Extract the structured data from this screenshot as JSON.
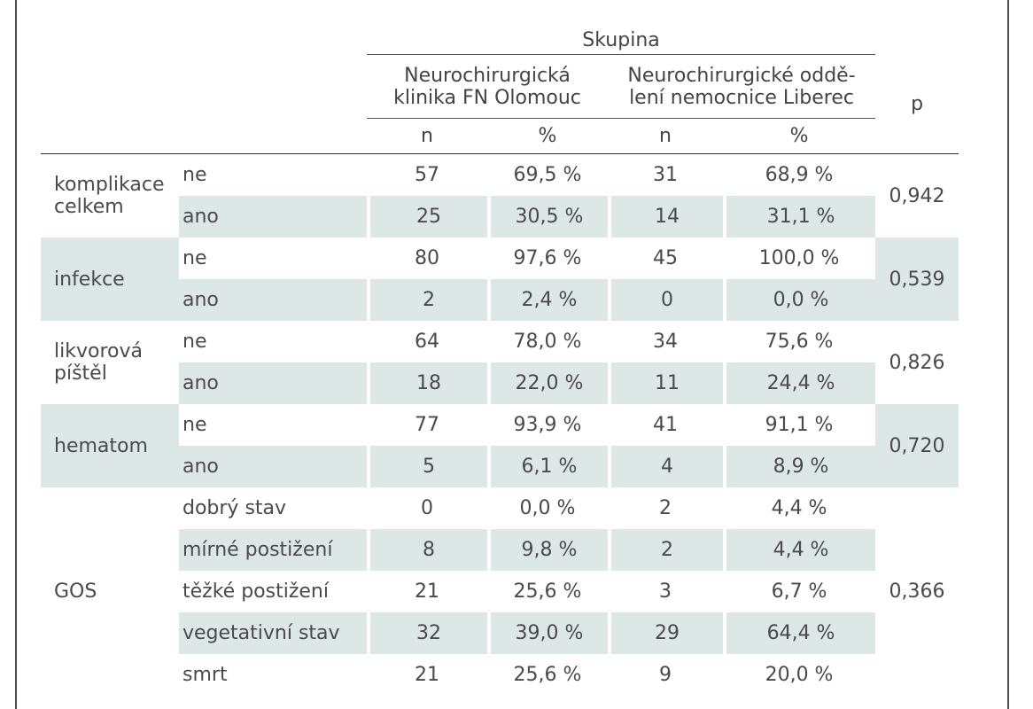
{
  "header": {
    "group_label": "Skupina",
    "col1_title": "Neurochirurgická klinika FN Olomouc",
    "col1_line1": "Neurochirurgická",
    "col1_line2": "klinika FN Olomouc",
    "col2_line1": "Neurochirurgické oddě-",
    "col2_line2": "lení nemocnice Liberec",
    "p_label": "p",
    "n": "n",
    "pct": "%"
  },
  "rows": [
    {
      "group": "komplikace celkem",
      "label": "ne",
      "n1": "57",
      "p1": "69,5 %",
      "n2": "31",
      "p2": "68,9 %"
    },
    {
      "group": "",
      "label": "ano",
      "n1": "25",
      "p1": "30,5 %",
      "n2": "14",
      "p2": "31,1 %"
    },
    {
      "group": "infekce",
      "label": "ne",
      "n1": "80",
      "p1": "97,6 %",
      "n2": "45",
      "p2": "100,0 %"
    },
    {
      "group": "",
      "label": "ano",
      "n1": "2",
      "p1": "2,4 %",
      "n2": "0",
      "p2": "0,0 %"
    },
    {
      "group": "likvorová píštěl",
      "label": "ne",
      "n1": "64",
      "p1": "78,0 %",
      "n2": "34",
      "p2": "75,6 %"
    },
    {
      "group": "",
      "label": "ano",
      "n1": "18",
      "p1": "22,0 %",
      "n2": "11",
      "p2": "24,4 %"
    },
    {
      "group": "hematom",
      "label": "ne",
      "n1": "77",
      "p1": "93,9 %",
      "n2": "41",
      "p2": "91,1 %"
    },
    {
      "group": "",
      "label": "ano",
      "n1": "5",
      "p1": "6,1 %",
      "n2": "4",
      "p2": "8,9 %"
    },
    {
      "group": "GOS",
      "label": "dobrý stav",
      "n1": "0",
      "p1": "0,0 %",
      "n2": "2",
      "p2": "4,4 %"
    },
    {
      "group": "",
      "label": "mírné postižení",
      "n1": "8",
      "p1": "9,8 %",
      "n2": "2",
      "p2": "4,4 %"
    },
    {
      "group": "",
      "label": "těžké postižení",
      "n1": "21",
      "p1": "25,6 %",
      "n2": "3",
      "p2": "6,7 %"
    },
    {
      "group": "",
      "label": "vegetativní stav",
      "n1": "32",
      "p1": "39,0 %",
      "n2": "29",
      "p2": "64,4 %"
    },
    {
      "group": "",
      "label": "smrt",
      "n1": "21",
      "p1": "25,6 %",
      "n2": "9",
      "p2": "20,0 %"
    }
  ],
  "groups": {
    "komplikace_line1": "komplikace",
    "komplikace_line2": "celkem",
    "infekce": "infekce",
    "likvor_line1": "likvorová",
    "likvor_line2": "píštěl",
    "hematom": "hematom",
    "gos": "GOS"
  },
  "pvalues": {
    "komplikace": "0,942",
    "infekce": "0,539",
    "likvor": "0,826",
    "hematom": "0,720",
    "gos": "0,366"
  },
  "colors": {
    "shade": "#dde8e6",
    "text": "#4a4a4a",
    "rule": "#555555"
  }
}
